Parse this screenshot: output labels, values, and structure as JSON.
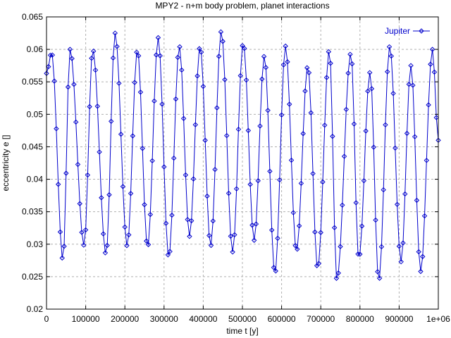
{
  "chart_data": {
    "type": "line",
    "title": "MPY2 - n+m body problem, planet interactions",
    "xlabel": "time t [y]",
    "ylabel": "eccentricity e []",
    "xlim": [
      0,
      1000000
    ],
    "ylim": [
      0.02,
      0.065
    ],
    "xticks": [
      0,
      100000,
      200000,
      300000,
      400000,
      500000,
      600000,
      700000,
      800000,
      900000,
      1000000
    ],
    "xtick_labels": [
      "0",
      "100000",
      "200000",
      "300000",
      "400000",
      "500000",
      "600000",
      "700000",
      "800000",
      "900000",
      "1e+06"
    ],
    "yticks": [
      0.02,
      0.025,
      0.03,
      0.035,
      0.04,
      0.045,
      0.05,
      0.055,
      0.06,
      0.065
    ],
    "ytick_labels": [
      "0.02",
      "0.025",
      "0.03",
      "0.035",
      "0.04",
      "0.045",
      "0.05",
      "0.055",
      "0.06",
      "0.065"
    ],
    "grid": true,
    "legend_position": "top-right",
    "line_color": "#0000cc",
    "marker": "diamond",
    "series": [
      {
        "name": "Jupiter",
        "sample_step": 5000,
        "maxima": [
          [
            13000,
            0.0595
          ],
          [
            60000,
            0.06
          ],
          [
            118000,
            0.06
          ],
          [
            175000,
            0.0625
          ],
          [
            232000,
            0.06
          ],
          [
            285000,
            0.0618
          ],
          [
            339000,
            0.0605
          ],
          [
            392000,
            0.0605
          ],
          [
            446000,
            0.0628
          ],
          [
            502000,
            0.061
          ],
          [
            556000,
            0.059
          ],
          [
            610000,
            0.0605
          ],
          [
            667000,
            0.0575
          ],
          [
            722000,
            0.06
          ],
          [
            777000,
            0.0595
          ],
          [
            826000,
            0.0565
          ],
          [
            876000,
            0.0605
          ],
          [
            930000,
            0.0575
          ],
          [
            985000,
            0.06
          ]
        ],
        "minima": [
          [
            42000,
            0.0275
          ],
          [
            96000,
            0.0298
          ],
          [
            152000,
            0.0284
          ],
          [
            206000,
            0.0297
          ],
          [
            258000,
            0.0295
          ],
          [
            312000,
            0.0279
          ],
          [
            365000,
            0.0312
          ],
          [
            419000,
            0.0297
          ],
          [
            475000,
            0.0288
          ],
          [
            530000,
            0.0306
          ],
          [
            583000,
            0.0254
          ],
          [
            638000,
            0.0289
          ],
          [
            692000,
            0.0262
          ],
          [
            741000,
            0.0245
          ],
          [
            797000,
            0.0277
          ],
          [
            848000,
            0.0243
          ],
          [
            905000,
            0.0273
          ],
          [
            955000,
            0.0258
          ]
        ],
        "start_value": 0.0563,
        "end_value": 0.046
      }
    ]
  }
}
